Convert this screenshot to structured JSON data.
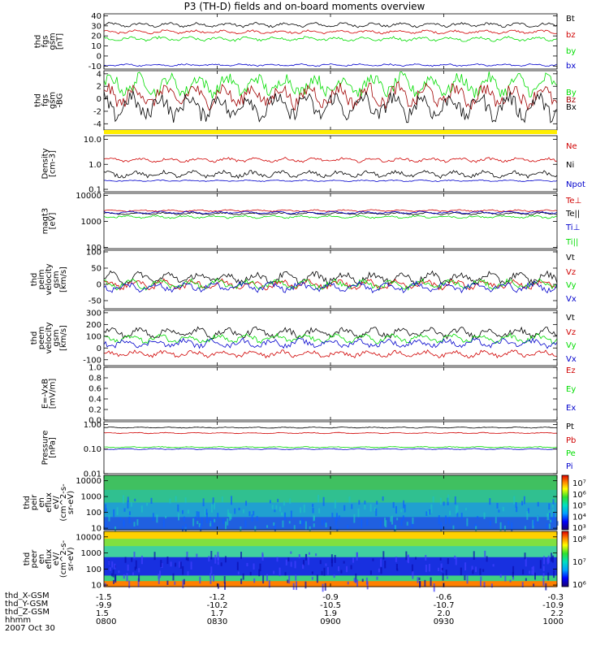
{
  "title": "P3 (TH-D) fields and on-board moments overview",
  "colors": {
    "black": "#000000",
    "red": "#d00000",
    "green": "#00dd00",
    "blue": "#0000cc",
    "darkred": "#a00000",
    "yellow": "#ffee00"
  },
  "chart_data": [
    {
      "type": "line",
      "ylabel": [
        "thd",
        "fgs",
        "gsm",
        "[nT]"
      ],
      "yticks": [
        "40",
        "30",
        "20",
        "10",
        "0",
        "-10"
      ],
      "ytick_values": [
        40,
        30,
        20,
        10,
        0,
        -10
      ],
      "ylim": [
        -13,
        42
      ],
      "scale": "linear",
      "series": [
        {
          "name": "Bt",
          "color": "black",
          "level": 31,
          "noise": 1.5
        },
        {
          "name": "bz",
          "color": "red",
          "level": 24,
          "noise": 1.2
        },
        {
          "name": "by",
          "color": "green",
          "level": 17,
          "noise": 1.5
        },
        {
          "name": "bx",
          "color": "blue",
          "level": -9,
          "noise": 0.8
        }
      ]
    },
    {
      "type": "line",
      "ylabel": [
        "thd",
        "fgs",
        "gsm",
        "-BG"
      ],
      "yticks": [
        "4",
        "2",
        "0",
        "-2",
        "-4"
      ],
      "ytick_values": [
        4,
        2,
        0,
        -2,
        -4
      ],
      "ylim": [
        -5,
        4.5
      ],
      "scale": "linear",
      "series": [
        {
          "name": "By",
          "color": "green",
          "level": 2.2,
          "noise": 1.2
        },
        {
          "name": "Bz",
          "color": "darkred",
          "level": 0.5,
          "noise": 1.3
        },
        {
          "name": "Bx",
          "color": "black",
          "level": -1.2,
          "noise": 1.5
        }
      ]
    },
    {
      "type": "line",
      "ylabel": [
        "Density",
        "[cm-3]"
      ],
      "yticks": [
        "10.0",
        "1.0",
        "0.1"
      ],
      "ytick_values": [
        10,
        1,
        0.1
      ],
      "ylim": [
        0.08,
        14
      ],
      "scale": "log",
      "series": [
        {
          "name": "Ne",
          "color": "red",
          "level": 1.5,
          "noise": 0.12
        },
        {
          "name": "Ni",
          "color": "black",
          "level": 0.4,
          "noise": 0.18
        },
        {
          "name": "Npot",
          "color": "blue",
          "level": 0.22,
          "noise": 0.04
        }
      ]
    },
    {
      "type": "line",
      "ylabel": [
        "magt3",
        "[eV]"
      ],
      "yticks": [
        "10000",
        "1000",
        "100"
      ],
      "ytick_values": [
        10000,
        1000,
        100
      ],
      "ylim": [
        90,
        12000
      ],
      "scale": "log",
      "series": [
        {
          "name": "Te⊥",
          "color": "red",
          "level": 2600,
          "noise": 0.05
        },
        {
          "name": "Te||",
          "color": "black",
          "level": 2000,
          "noise": 0.06
        },
        {
          "name": "Ti⊥",
          "color": "blue",
          "level": 2200,
          "noise": 0.06
        },
        {
          "name": "Ti||",
          "color": "green",
          "level": 1500,
          "noise": 0.07
        }
      ]
    },
    {
      "type": "line",
      "ylabel": [
        "thd",
        "peim",
        "velocity",
        "gsm",
        "[km/s]"
      ],
      "yticks": [
        "100",
        "50",
        "0",
        "-50"
      ],
      "ytick_values": [
        100,
        50,
        0,
        -50
      ],
      "ylim": [
        -75,
        105
      ],
      "scale": "linear",
      "series": [
        {
          "name": "Vt",
          "color": "black",
          "level": 20,
          "noise": 12
        },
        {
          "name": "Vz",
          "color": "red",
          "level": 0,
          "noise": 10
        },
        {
          "name": "Vy",
          "color": "green",
          "level": 0,
          "noise": 10
        },
        {
          "name": "Vx",
          "color": "blue",
          "level": -8,
          "noise": 10
        }
      ]
    },
    {
      "type": "line",
      "ylabel": [
        "thd",
        "peem",
        "velocity",
        "gsm",
        "[km/s]"
      ],
      "yticks": [
        "300",
        "200",
        "100",
        "0",
        "-100"
      ],
      "ytick_values": [
        300,
        200,
        100,
        0,
        -100
      ],
      "ylim": [
        -150,
        320
      ],
      "scale": "linear",
      "series": [
        {
          "name": "Vt",
          "color": "black",
          "level": 130,
          "noise": 30
        },
        {
          "name": "Vz",
          "color": "red",
          "level": -50,
          "noise": 20
        },
        {
          "name": "Vy",
          "color": "green",
          "level": 80,
          "noise": 25
        },
        {
          "name": "Vx",
          "color": "blue",
          "level": 40,
          "noise": 25
        }
      ]
    },
    {
      "type": "line",
      "ylabel": [
        "E=-VxB",
        "[mV/m]"
      ],
      "yticks": [
        "1.0",
        "0.8",
        "0.6",
        "0.4",
        "0.2",
        "0.0"
      ],
      "ytick_values": [
        1.0,
        0.8,
        0.6,
        0.4,
        0.2,
        0.0
      ],
      "ylim": [
        0,
        1.0
      ],
      "scale": "linear",
      "series": [
        {
          "name": "Ez",
          "color": "red"
        },
        {
          "name": "Ey",
          "color": "green"
        },
        {
          "name": "Ex",
          "color": "blue"
        }
      ]
    },
    {
      "type": "line",
      "ylabel": [
        "Pressure",
        "[nPa]"
      ],
      "yticks": [
        "1.00",
        "0.10",
        "0.01"
      ],
      "ytick_values": [
        1.0,
        0.1,
        0.01
      ],
      "ylim": [
        0.01,
        1.3
      ],
      "scale": "log",
      "series": [
        {
          "name": "Pt",
          "color": "black",
          "level": 0.75,
          "noise": 0.03
        },
        {
          "name": "Pb",
          "color": "red",
          "level": 0.45,
          "noise": 0.03
        },
        {
          "name": "Pe",
          "color": "green",
          "level": 0.12,
          "noise": 0.03
        },
        {
          "name": "Pi",
          "color": "blue",
          "level": 0.1,
          "noise": 0.03
        }
      ]
    },
    {
      "type": "heatmap",
      "ylabel": [
        "thd",
        "peir",
        "en",
        "eflux",
        "eV/",
        "(cm^2-s-",
        "sr-eV)"
      ],
      "yticks": [
        "10000",
        "1000",
        "100",
        "10"
      ],
      "ytick_values": [
        10000,
        1000,
        100,
        10
      ],
      "ylim": [
        8,
        22000
      ],
      "scale": "log",
      "colorbar_ticks": [
        "10⁷",
        "10⁶",
        "10⁵",
        "10⁴",
        "10³"
      ]
    },
    {
      "type": "heatmap",
      "ylabel": [
        "thd",
        "peer",
        "en",
        "eflux",
        "eV/",
        "(cm^2-s-",
        "sr-eV)"
      ],
      "yticks": [
        "10000",
        "1000",
        "100",
        "10"
      ],
      "ytick_values": [
        10000,
        1000,
        100,
        10
      ],
      "ylim": [
        8,
        22000
      ],
      "scale": "log",
      "colorbar_ticks": [
        "10⁸",
        "10⁷",
        "10⁶"
      ]
    }
  ],
  "xaxis": {
    "row_labels": [
      "thd_X-GSM",
      "thd_Y-GSM",
      "thd_Z-GSM",
      "hhmm",
      "2007 Oct 30"
    ],
    "ticks": [
      {
        "x": "-1.5",
        "y": "-9.9",
        "z": "1.5",
        "t": "0800"
      },
      {
        "x": "-1.2",
        "y": "-10.2",
        "z": "1.7",
        "t": "0830"
      },
      {
        "x": "-0.9",
        "y": "-10.5",
        "z": "1.9",
        "t": "0900"
      },
      {
        "x": "-0.6",
        "y": "-10.7",
        "z": "2.0",
        "t": "0930"
      },
      {
        "x": "-0.3",
        "y": "-10.9",
        "z": "2.2",
        "t": "1000"
      }
    ]
  }
}
